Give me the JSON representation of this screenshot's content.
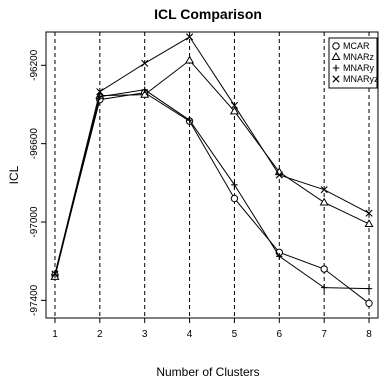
{
  "chart_data": {
    "type": "line",
    "title": "ICL Comparison",
    "xlabel": "Number of Clusters",
    "ylabel": "ICL",
    "x": [
      1,
      2,
      3,
      4,
      5,
      6,
      7,
      8
    ],
    "xlim": [
      0.8,
      8.2
    ],
    "ylim": [
      -97490,
      -96030
    ],
    "yticks": [
      -97400,
      -97000,
      -96600,
      -96200
    ],
    "ytick_labels": [
      "-97400",
      "-97000",
      "-96600",
      "-96200"
    ],
    "xtick_labels": [
      "1",
      "2",
      "3",
      "4",
      "5",
      "6",
      "7",
      "8"
    ],
    "vertical_gridlines": true,
    "gridline_style": "dashed",
    "legend_position": "top-right",
    "series": [
      {
        "name": "MCAR",
        "marker": "circle",
        "values": [
          -97270,
          -96375,
          -96340,
          -96485,
          -96880,
          -97155,
          -97240,
          -97415
        ]
      },
      {
        "name": "MNARz",
        "marker": "triangle",
        "values": [
          -97280,
          -96355,
          -96350,
          -96175,
          -96435,
          -96745,
          -96900,
          -97010
        ]
      },
      {
        "name": "MNARy",
        "marker": "plus",
        "values": [
          -97270,
          -96360,
          -96325,
          -96480,
          -96810,
          -97175,
          -97335,
          -97340
        ]
      },
      {
        "name": "MNARyz",
        "marker": "cross",
        "values": [
          -97265,
          -96335,
          -96190,
          -96055,
          -96405,
          -96760,
          -96835,
          -96955
        ]
      }
    ]
  }
}
